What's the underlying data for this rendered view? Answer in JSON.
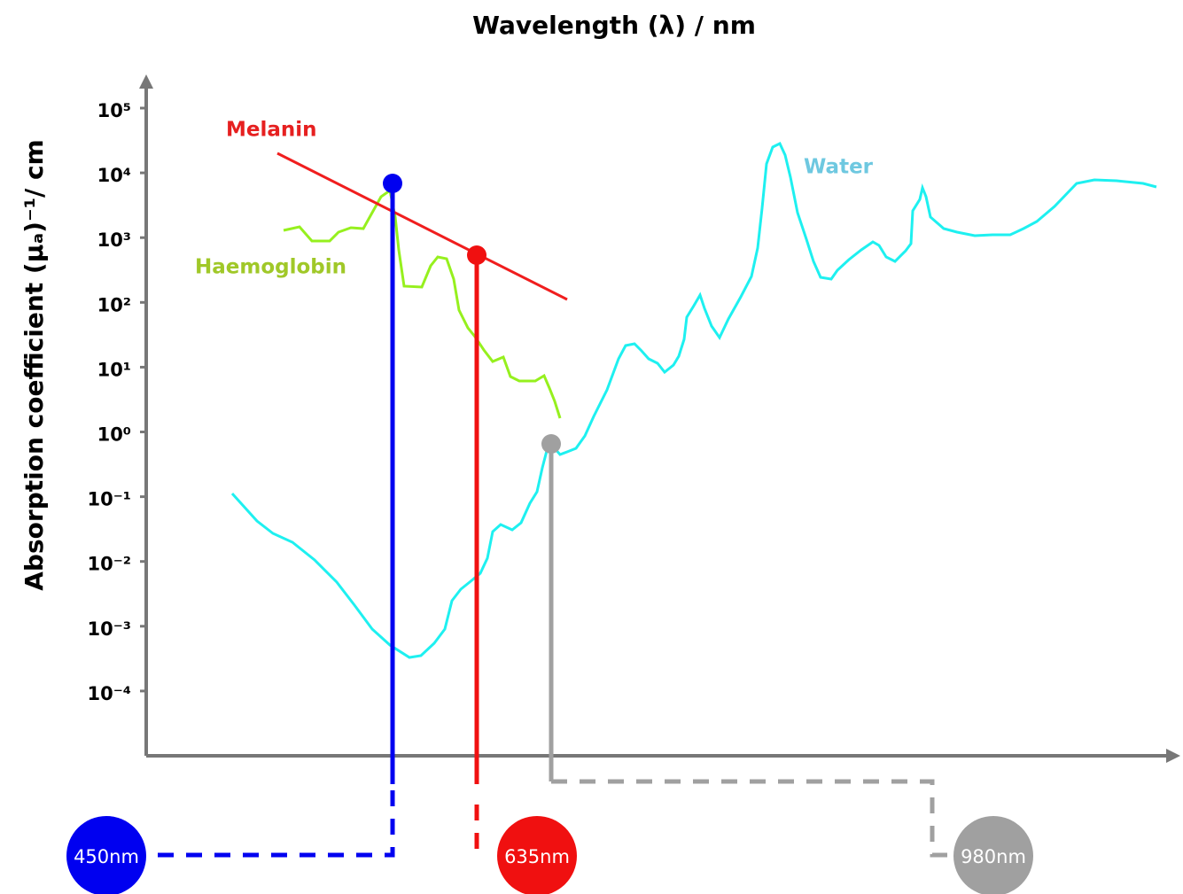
{
  "title": "Wavelength (λ) / nm",
  "y_axis_label": "Absorption coefficient (μₐ)⁻¹/ cm",
  "y_ticks": [
    "10⁵",
    "10⁴",
    "10³",
    "10²",
    "10¹",
    "10⁰",
    "10⁻¹",
    "10⁻²",
    "10⁻³",
    "10⁻⁴"
  ],
  "curve_labels": {
    "melanin": "Melanin",
    "haemoglobin": "Haemoglobin",
    "water": "Water"
  },
  "wavelengths": [
    "450nm",
    "635nm",
    "980nm"
  ]
}
